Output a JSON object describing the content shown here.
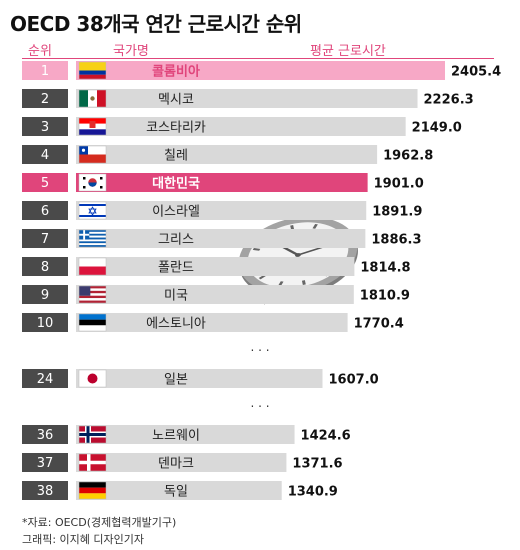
{
  "title": "OECD 38개국 연간 근로시간 순위",
  "headers": {
    "rank": "순위",
    "country": "국가명",
    "hours": "평균 근로시간"
  },
  "ellipsis": "· · ·",
  "source": "*자료: OECD(경제협력개발기구)",
  "credit": "그래픽: 이지혜 디자인기자",
  "colors": {
    "accent": "#e0457b",
    "accent_light": "#f7a8c6",
    "bar": "#d9d9d9",
    "rank_box": "#4a4a4a"
  },
  "chart_data": {
    "type": "bar",
    "orientation": "horizontal",
    "xlim": [
      0,
      2405.4
    ],
    "rows": [
      {
        "rank": "1",
        "country": "콜롬비아",
        "value": 2405.4,
        "label": "2405.4",
        "flag": "colombia",
        "highlight": "light"
      },
      {
        "rank": "2",
        "country": "멕시코",
        "value": 2226.3,
        "label": "2226.3",
        "flag": "mexico"
      },
      {
        "rank": "3",
        "country": "코스타리카",
        "value": 2149.0,
        "label": "2149.0",
        "flag": "croatia"
      },
      {
        "rank": "4",
        "country": "칠레",
        "value": 1962.8,
        "label": "1962.8",
        "flag": "chile"
      },
      {
        "rank": "5",
        "country": "대한민국",
        "value": 1901.0,
        "label": "1901.0",
        "flag": "korea",
        "highlight": "strong"
      },
      {
        "rank": "6",
        "country": "이스라엘",
        "value": 1891.9,
        "label": "1891.9",
        "flag": "israel"
      },
      {
        "rank": "7",
        "country": "그리스",
        "value": 1886.3,
        "label": "1886.3",
        "flag": "greece"
      },
      {
        "rank": "8",
        "country": "폴란드",
        "value": 1814.8,
        "label": "1814.8",
        "flag": "poland"
      },
      {
        "rank": "9",
        "country": "미국",
        "value": 1810.9,
        "label": "1810.9",
        "flag": "usa"
      },
      {
        "rank": "10",
        "country": "에스토니아",
        "value": 1770.4,
        "label": "1770.4",
        "flag": "estonia"
      },
      {
        "gap": true
      },
      {
        "rank": "24",
        "country": "일본",
        "value": 1607.0,
        "label": "1607.0",
        "flag": "japan"
      },
      {
        "gap": true
      },
      {
        "rank": "36",
        "country": "노르웨이",
        "value": 1424.6,
        "label": "1424.6",
        "flag": "norway"
      },
      {
        "rank": "37",
        "country": "덴마크",
        "value": 1371.6,
        "label": "1371.6",
        "flag": "denmark"
      },
      {
        "rank": "38",
        "country": "독일",
        "value": 1340.9,
        "label": "1340.9",
        "flag": "germany"
      }
    ]
  }
}
